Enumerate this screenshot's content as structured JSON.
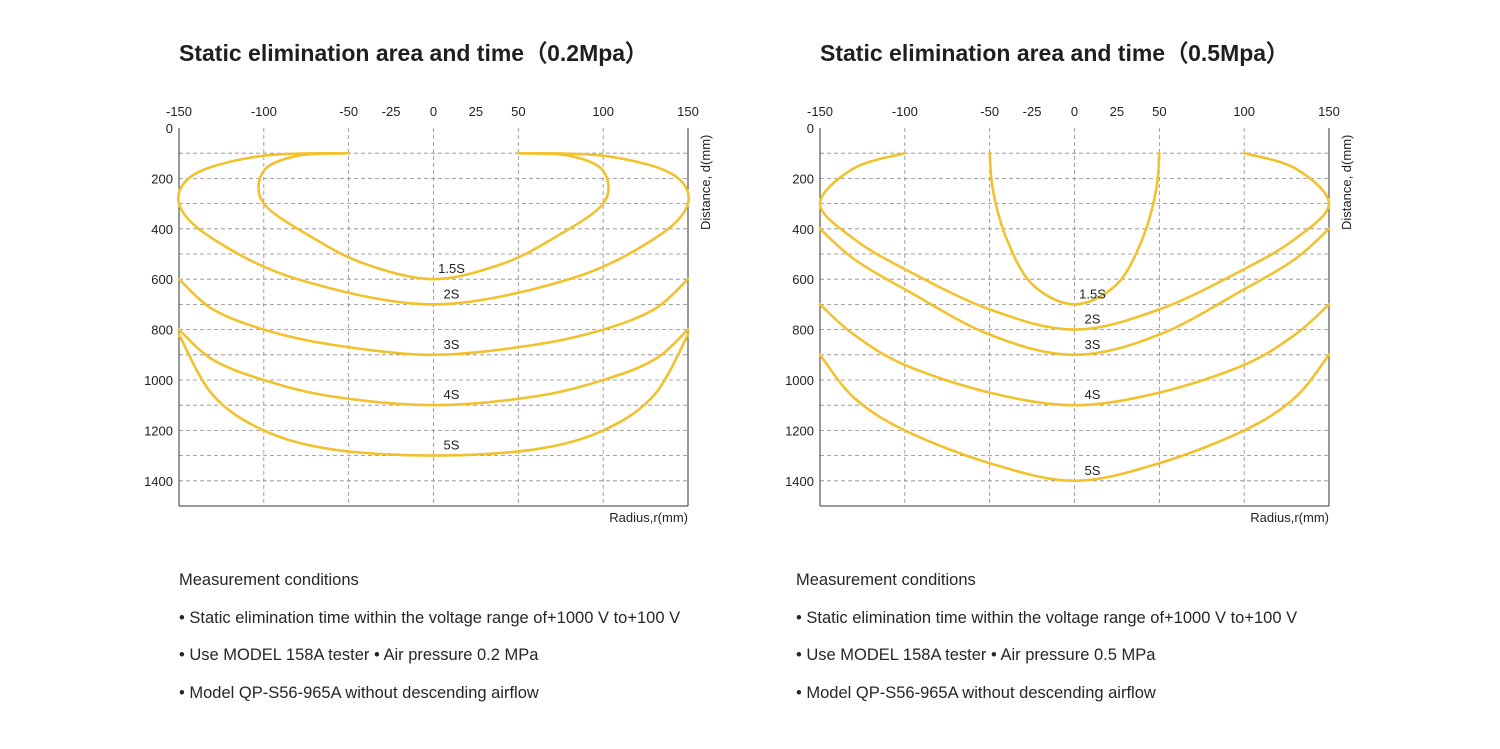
{
  "charts": [
    {
      "title": "Static elimination area and time（0.2Mpa）",
      "conditions": {
        "heading": "Measurement conditions",
        "items": [
          "• Static elimination time within the voltage range of+1000 V to+100 V",
          "• Use MODEL 158A tester • Air pressure 0.2 MPa",
          "• Model QP-S56-965A without descending airflow"
        ]
      }
    },
    {
      "title": "Static elimination area and time（0.5Mpa）",
      "conditions": {
        "heading": "Measurement conditions",
        "items": [
          "• Static elimination time within the voltage range of+1000 V to+100 V",
          "• Use MODEL 158A tester • Air pressure 0.5 MPa",
          "• Model QP-S56-965A without descending airflow"
        ]
      }
    }
  ],
  "chart_data": [
    {
      "type": "line",
      "title": "Static elimination area and time（0.2Mpa）",
      "xlabel": "Radius,r(mm)",
      "ylabel": "Distance, d(mm)",
      "xlim": [
        -150,
        150
      ],
      "ylim": [
        0,
        1500
      ],
      "y_inverted": true,
      "x_axis_position": "top",
      "grid": true,
      "line_color": "#f2c12e",
      "xticks": [
        -150,
        -100,
        -50,
        -25,
        0,
        25,
        50,
        100,
        150
      ],
      "yticks": [
        0,
        200,
        400,
        600,
        800,
        1000,
        1200,
        1400
      ],
      "series": [
        {
          "name": "1.5S",
          "x": [
            -50,
            -80,
            -100,
            -100,
            -70,
            -40,
            0,
            40,
            70,
            100,
            100,
            80,
            50
          ],
          "y": [
            100,
            110,
            170,
            300,
            440,
            540,
            600,
            540,
            440,
            300,
            170,
            110,
            100
          ]
        },
        {
          "name": "2S",
          "x": [
            -50,
            -100,
            -140,
            -150,
            -130,
            -80,
            0,
            80,
            130,
            150,
            140,
            100,
            50
          ],
          "y": [
            100,
            110,
            180,
            300,
            440,
            600,
            700,
            600,
            440,
            300,
            180,
            110,
            100
          ]
        },
        {
          "name": "3S",
          "x": [
            -150,
            -130,
            -100,
            -60,
            0,
            60,
            100,
            130,
            150
          ],
          "y": [
            600,
            720,
            800,
            860,
            900,
            860,
            800,
            720,
            600
          ]
        },
        {
          "name": "4S",
          "x": [
            -150,
            -130,
            -100,
            -60,
            0,
            60,
            100,
            130,
            150
          ],
          "y": [
            800,
            920,
            1000,
            1065,
            1100,
            1065,
            1000,
            920,
            800
          ]
        },
        {
          "name": "5S",
          "x": [
            -150,
            -130,
            -100,
            -60,
            0,
            60,
            100,
            130,
            150
          ],
          "y": [
            820,
            1060,
            1200,
            1275,
            1300,
            1275,
            1200,
            1060,
            820
          ]
        }
      ]
    },
    {
      "type": "line",
      "title": "Static elimination area and time（0.5Mpa）",
      "xlabel": "Radius,r(mm)",
      "ylabel": "Distance, d(mm)",
      "xlim": [
        -150,
        150
      ],
      "ylim": [
        0,
        1500
      ],
      "y_inverted": true,
      "x_axis_position": "top",
      "grid": true,
      "line_color": "#f2c12e",
      "xticks": [
        -150,
        -100,
        -50,
        -25,
        0,
        25,
        50,
        100,
        150
      ],
      "yticks": [
        0,
        200,
        400,
        600,
        800,
        1000,
        1200,
        1400
      ],
      "series": [
        {
          "name": "1.5S",
          "x": [
            -50,
            -48,
            -40,
            -25,
            0,
            25,
            40,
            48,
            50
          ],
          "y": [
            100,
            250,
            440,
            620,
            700,
            620,
            440,
            250,
            100
          ]
        },
        {
          "name": "2S",
          "x": [
            -100,
            -130,
            -150,
            -130,
            -100,
            -50,
            0,
            50,
            100,
            130,
            150,
            130,
            100
          ],
          "y": [
            100,
            160,
            300,
            440,
            560,
            720,
            800,
            720,
            560,
            440,
            300,
            160,
            100
          ]
        },
        {
          "name": "3S",
          "x": [
            -150,
            -130,
            -100,
            -50,
            0,
            50,
            100,
            130,
            150
          ],
          "y": [
            400,
            520,
            640,
            820,
            900,
            820,
            640,
            520,
            400
          ]
        },
        {
          "name": "4S",
          "x": [
            -150,
            -130,
            -100,
            -50,
            0,
            50,
            100,
            130,
            150
          ],
          "y": [
            700,
            820,
            940,
            1050,
            1100,
            1050,
            940,
            820,
            700
          ]
        },
        {
          "name": "5S",
          "x": [
            -150,
            -130,
            -100,
            -50,
            0,
            50,
            100,
            130,
            150
          ],
          "y": [
            900,
            1070,
            1200,
            1330,
            1400,
            1330,
            1200,
            1070,
            900
          ]
        }
      ]
    }
  ]
}
